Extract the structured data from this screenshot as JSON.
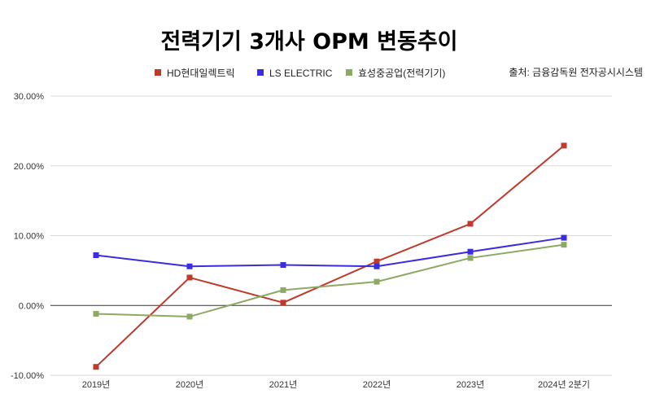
{
  "chart_data": {
    "type": "line",
    "title": "전력기기 3개사 OPM 변동추이",
    "source": "출처: 금융감독원 전자공시시스템",
    "categories": [
      "2019년",
      "2020년",
      "2021년",
      "2022년",
      "2023년",
      "2024년 2분기"
    ],
    "ylim": [
      -10,
      30
    ],
    "yticks": [
      -10,
      0,
      10,
      20,
      30
    ],
    "ytick_labels": [
      "-10.00%",
      "0.00%",
      "10.00%",
      "20.00%",
      "30.00%"
    ],
    "grid": true,
    "legend_position": "top",
    "series": [
      {
        "name": "HD현대일렉트릭",
        "color": "#c0392b",
        "values": [
          -8.8,
          4.0,
          0.4,
          6.3,
          11.7,
          22.9
        ]
      },
      {
        "name": "LS ELECTRIC",
        "color": "#3a2de0",
        "values": [
          7.2,
          5.6,
          5.8,
          5.6,
          7.7,
          9.7
        ]
      },
      {
        "name": "효성중공업(전력기기)",
        "color": "#8caa64",
        "values": [
          -1.2,
          -1.6,
          2.2,
          3.4,
          6.8,
          8.7
        ]
      }
    ]
  }
}
